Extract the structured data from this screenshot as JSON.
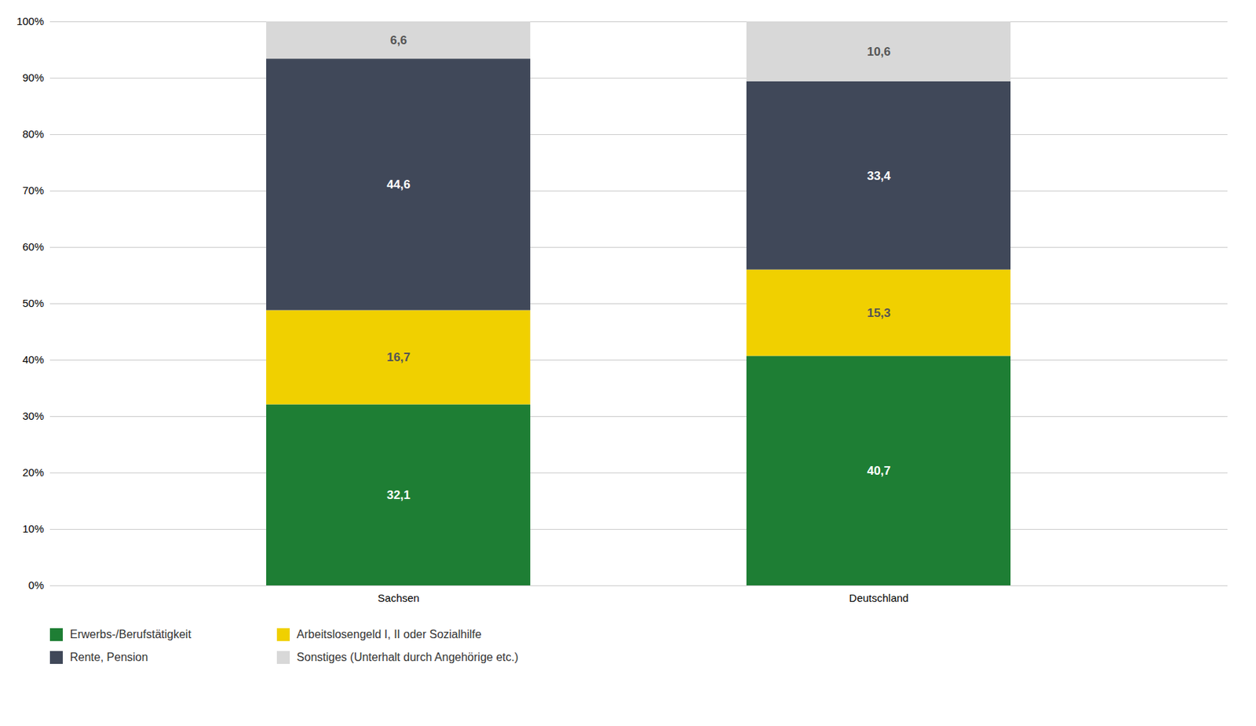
{
  "chart_data": {
    "type": "bar",
    "stacked": true,
    "categories": [
      "Sachsen",
      "Deutschland"
    ],
    "series": [
      {
        "name": "Erwerbs-/Berufstätigkeit",
        "color": "#1e7e34",
        "values": [
          32.1,
          40.7
        ],
        "value_labels": [
          "32,1",
          "40,7"
        ]
      },
      {
        "name": "Arbeitslosengeld I, II oder Sozialhilfe",
        "color": "#f0d000",
        "values": [
          16.7,
          15.3
        ],
        "value_labels": [
          "16,7",
          "15,3"
        ]
      },
      {
        "name": "Rente, Pension",
        "color": "#404859",
        "values": [
          44.6,
          33.4
        ],
        "value_labels": [
          "44,6",
          "33,4"
        ]
      },
      {
        "name": "Sonstiges (Unterhalt durch Angehörige etc.)",
        "color": "#d8d8d8",
        "values": [
          6.6,
          10.6
        ],
        "value_labels": [
          "6,6",
          "10,6"
        ]
      }
    ],
    "ylim": [
      0,
      100
    ],
    "yticks": [
      {
        "value": 0,
        "label": "0%"
      },
      {
        "value": 10,
        "label": "10%"
      },
      {
        "value": 20,
        "label": "20%"
      },
      {
        "value": 30,
        "label": "30%"
      },
      {
        "value": 40,
        "label": "40%"
      },
      {
        "value": 50,
        "label": "50%"
      },
      {
        "value": 60,
        "label": "60%"
      },
      {
        "value": 70,
        "label": "70%"
      },
      {
        "value": 80,
        "label": "80%"
      },
      {
        "value": 90,
        "label": "90%"
      },
      {
        "value": 100,
        "label": "100%"
      }
    ],
    "grid": true,
    "data_labels": true,
    "legend": "bottom"
  }
}
